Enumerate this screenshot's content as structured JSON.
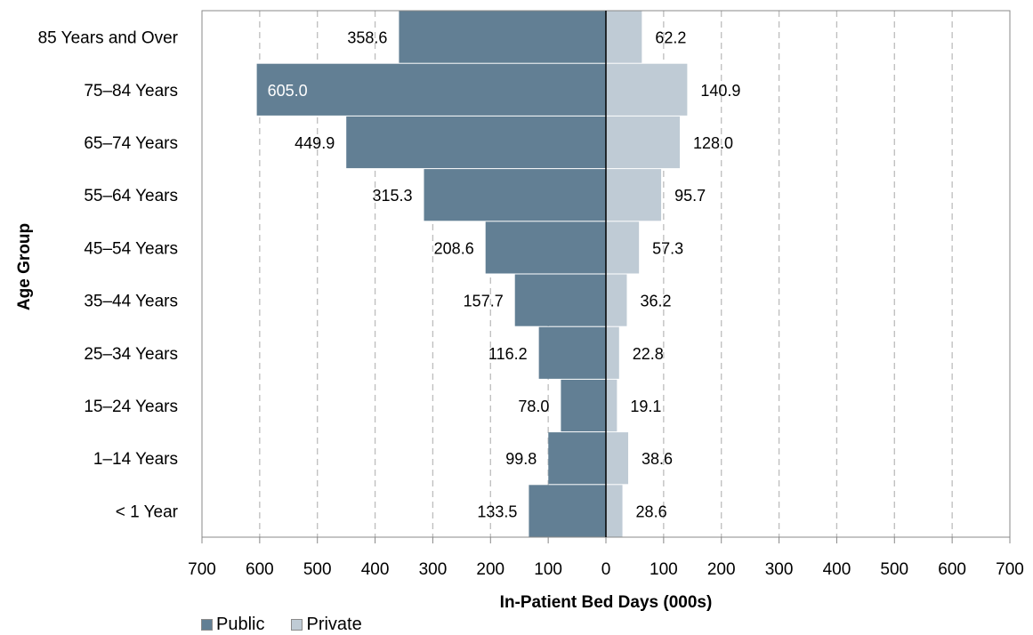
{
  "chart_data": {
    "type": "bar",
    "orientation": "horizontal-diverging",
    "categories": [
      "85 Years and Over",
      "75–84 Years",
      "65–74 Years",
      "55–64 Years",
      "45–54 Years",
      "35–44 Years",
      "25–34 Years",
      "15–24 Years",
      "1–14 Years",
      "< 1 Year"
    ],
    "series": [
      {
        "name": "Public",
        "values": [
          358.6,
          605.0,
          449.9,
          315.3,
          208.6,
          157.7,
          116.2,
          78.0,
          99.8,
          133.5
        ],
        "labels": [
          "358.6",
          "605.0",
          "449.9",
          "315.3",
          "208.6",
          "157.7",
          "116.2",
          "78.0",
          "99.8",
          "133.5"
        ],
        "color": "#627f94",
        "direction": "left"
      },
      {
        "name": "Private",
        "values": [
          62.2,
          140.9,
          128.0,
          95.7,
          57.3,
          36.2,
          22.8,
          19.1,
          38.6,
          28.6
        ],
        "labels": [
          "62.2",
          "140.9",
          "128.0",
          "95.7",
          "57.3",
          "36.2",
          "22.8",
          "19.1",
          "38.6",
          "28.6"
        ],
        "color": "#bfcbd5",
        "direction": "right"
      }
    ],
    "xlabel": "In-Patient Bed Days (000s)",
    "ylabel": "Age Group",
    "xlim": [
      -700,
      700
    ],
    "x_ticks": [
      "700",
      "600",
      "500",
      "400",
      "300",
      "200",
      "100",
      "0",
      "100",
      "200",
      "300",
      "400",
      "500",
      "600",
      "700"
    ],
    "grid": "vertical dashed",
    "legend_position": "bottom-left"
  }
}
